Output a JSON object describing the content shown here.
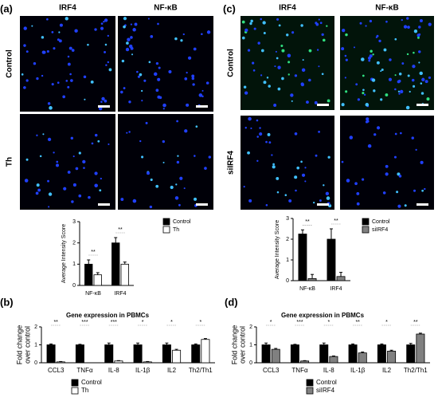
{
  "panels": [
    {
      "label": "(a)",
      "columns": [
        "IRF4",
        "NF-κB"
      ],
      "rows": [
        "Control",
        "Th"
      ]
    },
    {
      "label": "(c)",
      "columns": [
        "IRF4",
        "NF-κB"
      ],
      "rows": [
        "Control",
        "siIRF4"
      ]
    },
    {
      "label": "(b)"
    },
    {
      "label": "(d)"
    }
  ],
  "chart_data": [
    {
      "type": "bar",
      "y_label": "Average Intensity Score",
      "categories": [
        "NF-κB",
        "IRF4"
      ],
      "series": [
        {
          "name": "Control",
          "color": "#000000",
          "values": [
            1.0,
            2.0
          ],
          "errors": [
            0.2,
            0.25
          ]
        },
        {
          "name": "Th",
          "color": "#ffffff",
          "values": [
            0.5,
            1.0
          ],
          "errors": [
            0.1,
            0.1
          ]
        }
      ],
      "ylim": [
        0,
        3
      ],
      "yticks": [
        0,
        1,
        2,
        3
      ],
      "significance": [
        "**",
        "**"
      ],
      "legend": "right"
    },
    {
      "type": "bar",
      "y_label": "Average Intensity Score",
      "categories": [
        "NF-κB",
        "IRF4"
      ],
      "series": [
        {
          "name": "Control",
          "color": "#000000",
          "values": [
            2.25,
            2.0
          ],
          "errors": [
            0.2,
            0.5
          ]
        },
        {
          "name": "siIRF4",
          "color": "#808080",
          "values": [
            0.1,
            0.2
          ],
          "errors": [
            0.2,
            0.2
          ]
        }
      ],
      "ylim": [
        0,
        3
      ],
      "yticks": [
        0,
        1,
        2,
        3
      ],
      "significance": [
        "**",
        "**"
      ],
      "legend": "right"
    },
    {
      "type": "bar",
      "title": "Gene expression in PBMCs",
      "y_label": [
        "Fold change",
        "over control"
      ],
      "categories": [
        "CCL3",
        "TNFα",
        "IL-8",
        "IL-1β",
        "IL2",
        "Th2/Th1"
      ],
      "series": [
        {
          "name": "Control",
          "color": "#000000",
          "values": [
            1.0,
            1.0,
            1.0,
            1.0,
            1.0,
            1.0
          ],
          "errors": [
            0.05,
            0.03,
            0.1,
            0.1,
            0.1,
            0.05
          ]
        },
        {
          "name": "Th",
          "color": "#ffffff",
          "values": [
            0.05,
            0,
            0.1,
            0.05,
            0.7,
            1.3
          ],
          "errors": [
            0.02,
            0,
            0.02,
            0.02,
            0.05,
            0.05
          ]
        }
      ],
      "ylim": [
        0,
        2
      ],
      "yticks": [
        0,
        1,
        2
      ],
      "significance": [
        "**",
        "***",
        "***",
        "*",
        "*",
        "*"
      ],
      "legend": "bottom"
    },
    {
      "type": "bar",
      "title": "Gene expression in PBMCs",
      "y_label": [
        "Fold change",
        "over control"
      ],
      "categories": [
        "CCL3",
        "TNFα",
        "IL-8",
        "IL-1β",
        "IL2",
        "Th2/Th1"
      ],
      "series": [
        {
          "name": "Control",
          "color": "#000000",
          "values": [
            1.0,
            1.0,
            1.0,
            1.0,
            1.0,
            1.0
          ],
          "errors": [
            0.1,
            0.03,
            0.1,
            0.05,
            0.05,
            0.08
          ]
        },
        {
          "name": "siIRF4",
          "color": "#808080",
          "values": [
            0.75,
            0.1,
            0.35,
            0.55,
            0.65,
            1.6
          ],
          "errors": [
            0.05,
            0.02,
            0.03,
            0.05,
            0.05,
            0.05
          ]
        }
      ],
      "ylim": [
        0,
        2
      ],
      "yticks": [
        0,
        1,
        2
      ],
      "significance": [
        "*",
        "***",
        "*",
        "**",
        "*",
        "**"
      ],
      "legend": "bottom"
    }
  ]
}
